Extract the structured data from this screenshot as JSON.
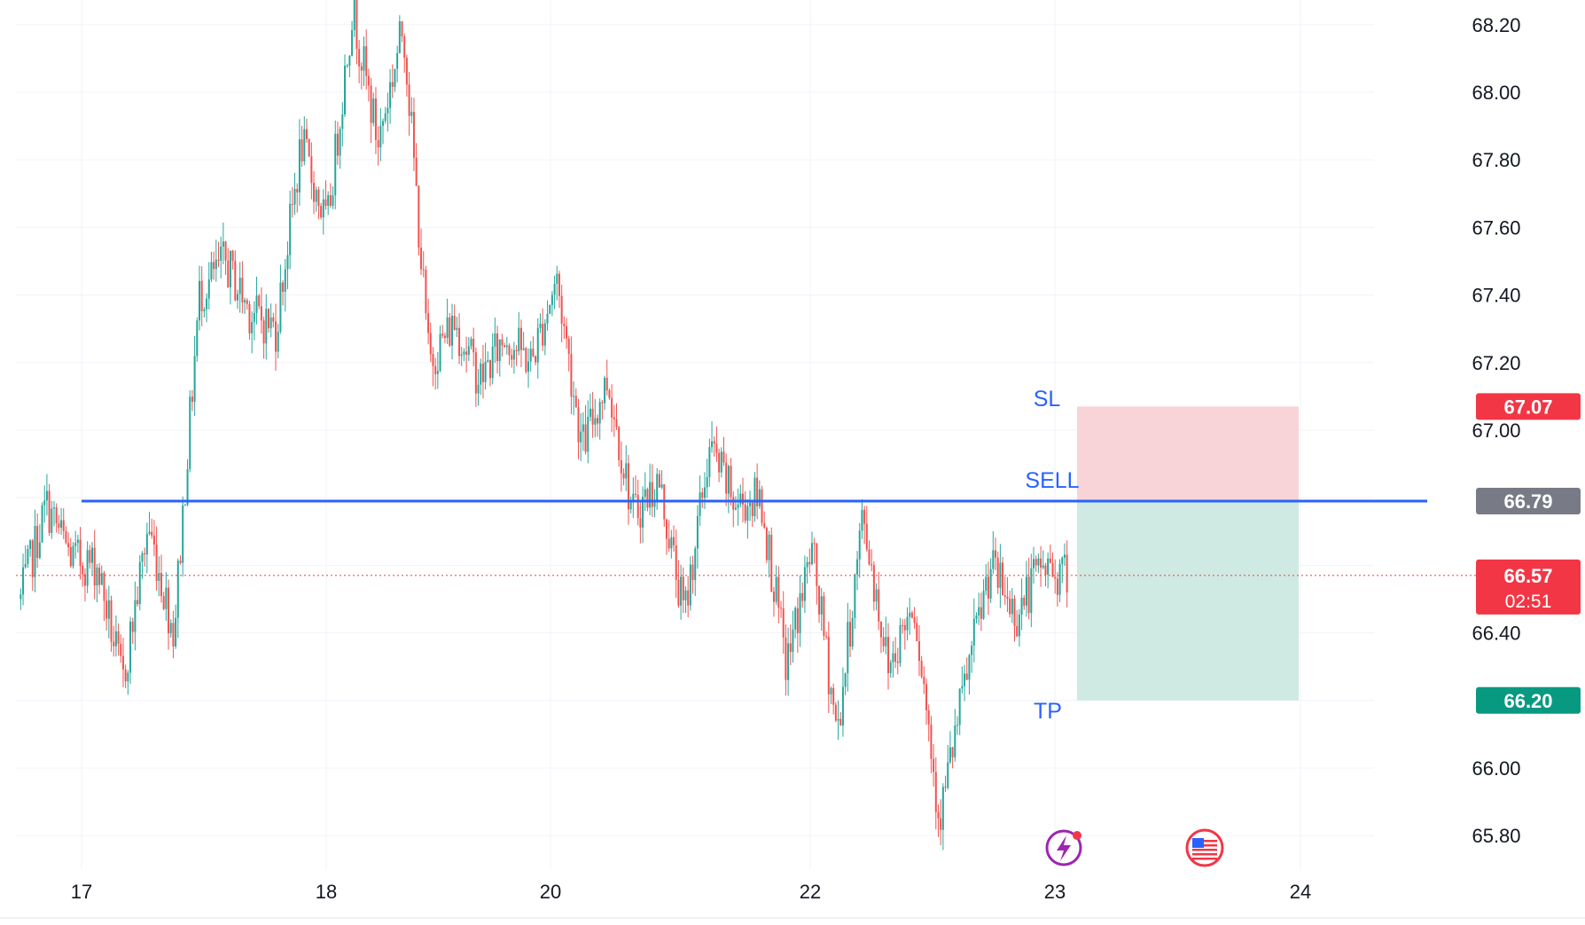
{
  "chart_data": {
    "type": "candlestick",
    "title": "",
    "xlabel": "",
    "ylabel": "",
    "x_ticks": [
      "17",
      "18",
      "20",
      "22",
      "23",
      "24"
    ],
    "y_ticks": [
      "68.20",
      "68.00",
      "67.80",
      "67.60",
      "67.40",
      "67.20",
      "67.00",
      "66.40",
      "66.00",
      "65.80"
    ],
    "ylim": [
      65.72,
      68.27
    ],
    "grid": true,
    "colors": {
      "up": "#26a69a",
      "down": "#ef5350",
      "entry_line": "#2962ff",
      "stop_zone": "#f8d4d8",
      "target_zone": "#cfe9e3",
      "stop_label_bg": "#f23645",
      "entry_label_bg": "#787b86",
      "target_label_bg": "#089981",
      "price_label_bg": "#f23645",
      "annotation_text": "#2962ff"
    },
    "price_path": [
      [
        "17",
        66.5
      ],
      [
        "17",
        66.78
      ],
      [
        "17",
        66.62
      ],
      [
        "17",
        66.6
      ],
      [
        "18",
        66.25
      ],
      [
        "18",
        66.72
      ],
      [
        "18",
        66.4
      ],
      [
        "18",
        67.4
      ],
      [
        "18",
        67.5
      ],
      [
        "18",
        67.35
      ],
      [
        "18",
        67.3
      ],
      [
        "18",
        67.85
      ],
      [
        "18",
        67.6
      ],
      [
        "18",
        68.25
      ],
      [
        "18",
        67.85
      ],
      [
        "18",
        68.2
      ],
      [
        "20",
        67.2
      ],
      [
        "20",
        67.32
      ],
      [
        "20",
        67.15
      ],
      [
        "20",
        67.28
      ],
      [
        "20",
        67.2
      ],
      [
        "20",
        67.45
      ],
      [
        "20",
        66.95
      ],
      [
        "20",
        67.15
      ],
      [
        "22",
        66.75
      ],
      [
        "22",
        66.85
      ],
      [
        "22",
        66.45
      ],
      [
        "22",
        66.95
      ],
      [
        "22",
        66.78
      ],
      [
        "22",
        66.8
      ],
      [
        "22",
        66.3
      ],
      [
        "22",
        66.65
      ],
      [
        "22",
        66.1
      ],
      [
        "22",
        66.75
      ],
      [
        "22",
        66.3
      ],
      [
        "22",
        66.5
      ],
      [
        "23",
        65.85
      ],
      [
        "23",
        66.25
      ],
      [
        "23",
        66.6
      ],
      [
        "23",
        66.45
      ],
      [
        "23",
        66.6
      ],
      [
        "23",
        66.57
      ]
    ],
    "annotations": {
      "sl_label": "SL",
      "entry_label": "SELL",
      "tp_label": "TP"
    },
    "position": {
      "side": "SELL",
      "entry": 66.79,
      "stop_loss": 67.07,
      "take_profit": 66.2
    },
    "price_labels": {
      "stop": "67.07",
      "entry": "66.79",
      "current": "66.57",
      "countdown": "02:51",
      "target": "66.20"
    },
    "current_price": 66.57,
    "events": [
      {
        "icon": "lightning-event-icon"
      },
      {
        "icon": "us-flag-event-icon"
      }
    ]
  }
}
